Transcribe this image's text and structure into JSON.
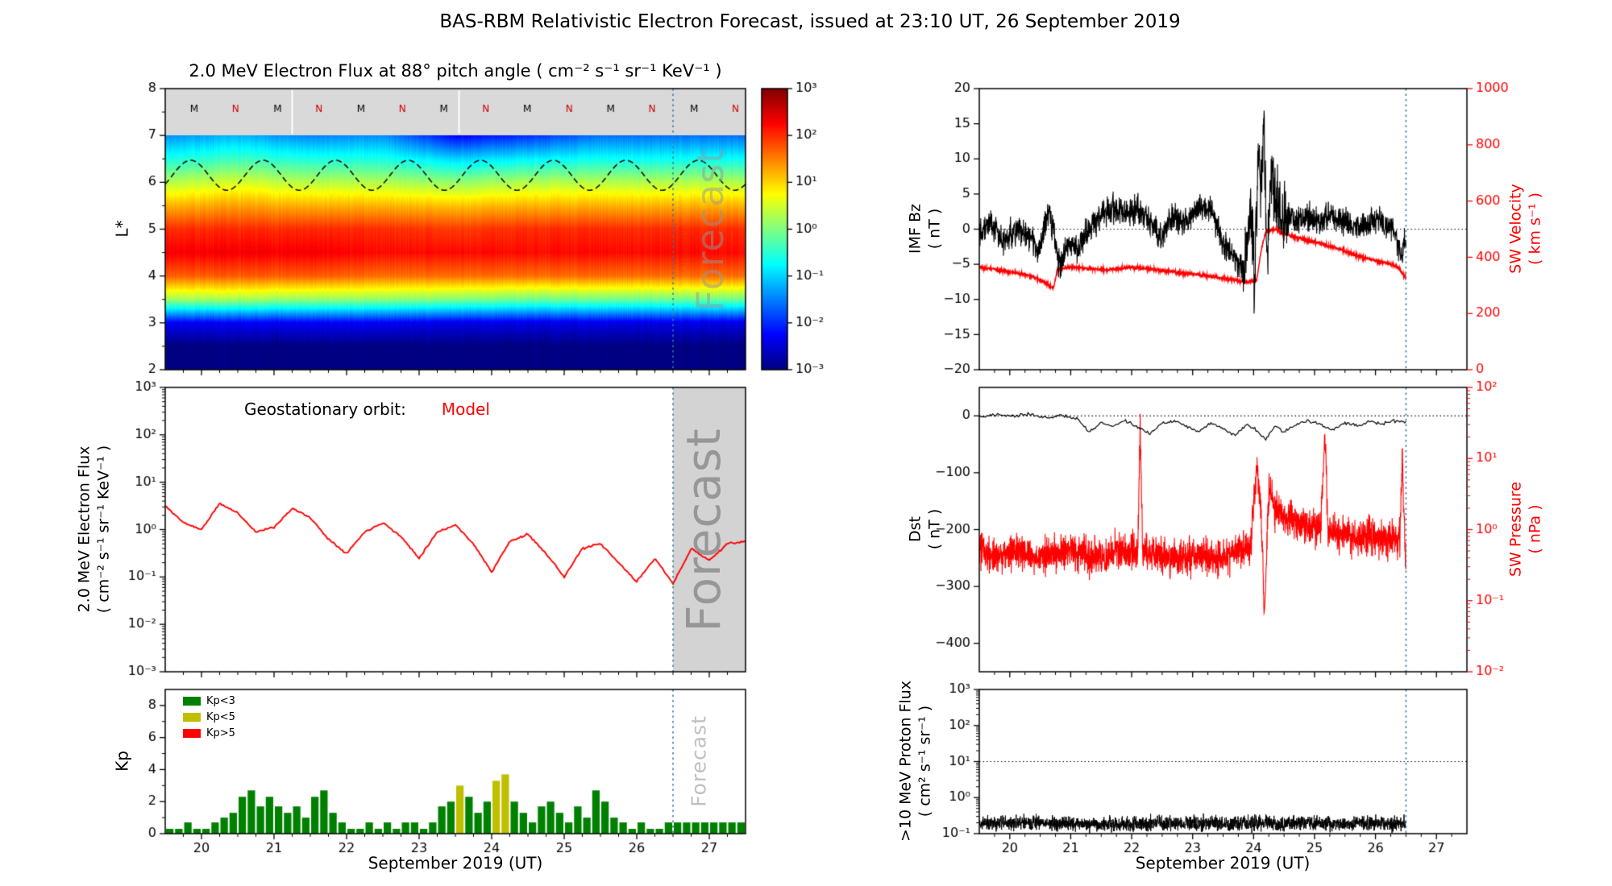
{
  "title": "BAS-RBM Relativistic Electron Forecast, issued at 23:10 UT, 26 September 2019",
  "time_axis": {
    "label": "September 2019 (UT)",
    "min": 19.5,
    "max": 27.5,
    "tick_values": [
      20,
      21,
      22,
      23,
      24,
      25,
      26,
      27
    ],
    "tick_labels": [
      "20",
      "21",
      "22",
      "23",
      "24",
      "25",
      "26",
      "27"
    ]
  },
  "forecast": {
    "start": 26.5,
    "line_color": "#357ba3",
    "region_color": "#d3d3d3",
    "watermark": "Forecast"
  },
  "chart_data": [
    {
      "id": "electron_flux_heatmap",
      "type": "heatmap",
      "title": "2.0 MeV Electron Flux at 88° pitch angle ( cm⁻² s⁻¹ sr⁻¹ KeV⁻¹ )",
      "ylabel": "L*",
      "ylim": [
        2,
        8
      ],
      "ytick_values": [
        2,
        3,
        4,
        5,
        6,
        7,
        8
      ],
      "ytick_labels": [
        "2",
        "3",
        "4",
        "5",
        "6",
        "7",
        "8"
      ],
      "color_scale": {
        "type": "jet",
        "scale": "log",
        "log10_min": -3,
        "log10_max": 3,
        "colorbar_tick_exps": [
          3,
          2,
          1,
          0,
          -1,
          -2,
          -3
        ],
        "colorbar_tick_labels": [
          "10³",
          "10²",
          "10¹",
          "10⁰",
          "10⁻¹",
          "10⁻²",
          "10⁻³"
        ]
      },
      "grid_times": [
        19.5,
        20.5,
        21.5,
        22.5,
        23.5,
        24.5,
        25.5,
        26.5,
        27.5
      ],
      "grid_lstar": [
        2,
        2.5,
        3,
        3.5,
        4,
        4.5,
        5,
        5.5,
        6,
        6.5,
        7
      ],
      "log10_flux_rows": [
        [
          -3,
          -3,
          -3,
          -3,
          -3,
          -3,
          -3,
          -3,
          -3
        ],
        [
          -3,
          -3,
          -3,
          -3,
          -3,
          -3,
          -3,
          -3,
          -3
        ],
        [
          -2.3,
          -2.3,
          -2.3,
          -2.3,
          -2.4,
          -2.4,
          -2.4,
          -2.4,
          -2.4
        ],
        [
          0.2,
          0.2,
          0.1,
          0.1,
          0.0,
          -0.1,
          -0.1,
          -0.1,
          -0.1
        ],
        [
          1.7,
          1.7,
          1.7,
          1.6,
          1.6,
          1.6,
          1.6,
          1.6,
          1.6
        ],
        [
          2.3,
          2.3,
          2.3,
          2.2,
          2.2,
          2.2,
          2.2,
          2.2,
          2.2
        ],
        [
          2.0,
          2.0,
          2.0,
          2.0,
          1.9,
          2.0,
          2.0,
          2.0,
          2.0
        ],
        [
          1.2,
          1.3,
          1.2,
          1.2,
          1.1,
          1.2,
          1.2,
          1.2,
          1.2
        ],
        [
          0.3,
          0.5,
          0.3,
          0.3,
          0.1,
          0.3,
          0.3,
          0.3,
          0.3
        ],
        [
          -0.6,
          -0.4,
          -0.6,
          -0.6,
          -1.0,
          -0.8,
          -0.7,
          -0.7,
          -0.7
        ],
        [
          -1.4,
          -1.2,
          -1.5,
          -1.4,
          -2.3,
          -2.0,
          -1.6,
          -1.6,
          -1.6
        ]
      ],
      "satellite_band": {
        "lstar_range": [
          7,
          8
        ],
        "fill": "#d9d9d9",
        "label_times": [
          19.9,
          20.47,
          21.05,
          21.62,
          22.2,
          22.77,
          23.34,
          23.92,
          24.49,
          25.07,
          25.64,
          26.21,
          26.79,
          27.36
        ],
        "labels": [
          "M",
          "N",
          "M",
          "N",
          "M",
          "N",
          "M",
          "N",
          "M",
          "N",
          "M",
          "N",
          "M",
          "N"
        ],
        "label_colors": {
          "M": "#000000",
          "N": "#cc0000"
        },
        "white_tick_times": [
          21.25,
          23.55
        ]
      },
      "dashed_line": {
        "name": "geostationary-lstar",
        "mean": 6.15,
        "amplitude": 0.32,
        "period_days": 1.0,
        "phase_peak_t": 19.85
      }
    },
    {
      "id": "geo_electron_flux",
      "type": "line",
      "legend": {
        "prefix": "Geostationary orbit:",
        "series_label": "Model",
        "color": "#ff0000"
      },
      "ylabel_lines": [
        "2.0 MeV Electron Flux",
        "( cm⁻² s⁻¹ sr⁻¹ KeV⁻¹ )"
      ],
      "yscale": "log",
      "ylim_exp": [
        -3,
        3
      ],
      "ytick_exps": [
        3,
        2,
        1,
        0,
        -1,
        -2,
        -3
      ],
      "ytick_labels": [
        "10³",
        "10²",
        "10¹",
        "10⁰",
        "10⁻¹",
        "10⁻²",
        "10⁻³"
      ],
      "series_log10": {
        "t": [
          19.5,
          19.75,
          20,
          20.25,
          20.5,
          20.75,
          21,
          21.25,
          21.5,
          21.75,
          22,
          22.25,
          22.5,
          22.75,
          23,
          23.25,
          23.5,
          23.75,
          24,
          24.25,
          24.5,
          24.75,
          25,
          25.25,
          25.5,
          25.75,
          26,
          26.25,
          26.5,
          26.75,
          27,
          27.25,
          27.5
        ],
        "v": [
          0.5,
          0.15,
          0,
          0.55,
          0.35,
          -0.05,
          0.05,
          0.45,
          0.25,
          -0.2,
          -0.5,
          -0.05,
          0.15,
          -0.15,
          -0.6,
          -0.05,
          0.1,
          -0.3,
          -0.9,
          -0.25,
          -0.1,
          -0.5,
          -1.0,
          -0.4,
          -0.3,
          -0.7,
          -1.1,
          -0.6,
          -1.15,
          -0.4,
          -0.65,
          -0.3,
          -0.25
        ]
      },
      "noise": 0.02
    },
    {
      "id": "kp_index",
      "type": "bar",
      "ylabel": "Kp",
      "xlabel": "September 2019 (UT)",
      "ylim": [
        0,
        9
      ],
      "ytick_values": [
        0,
        2,
        4,
        6,
        8
      ],
      "ytick_labels": [
        "0",
        "2",
        "4",
        "6",
        "8"
      ],
      "start_time": 19.5,
      "bar_width_days": 0.125,
      "thresholds": {
        "quiet_max": 3,
        "moderate_max": 5
      },
      "legend": [
        {
          "label": "Kp<3",
          "color": "#008000"
        },
        {
          "label": "Kp<5",
          "color": "#bfbf00"
        },
        {
          "label": "Kp>5",
          "color": "#ff0000"
        }
      ],
      "values": [
        0.3,
        0.3,
        0.7,
        0.3,
        0.3,
        0.7,
        1.0,
        1.3,
        2.3,
        2.7,
        1.7,
        2.3,
        1.7,
        1.3,
        1.7,
        1.0,
        2.3,
        2.7,
        1.3,
        0.7,
        0.3,
        0.3,
        0.7,
        0.3,
        0.7,
        0.3,
        0.7,
        0.7,
        0.3,
        0.7,
        1.7,
        2.0,
        3.0,
        2.3,
        1.3,
        2.0,
        3.3,
        3.7,
        2.0,
        1.3,
        0.7,
        1.7,
        2.0,
        1.3,
        0.7,
        1.7,
        1.0,
        2.7,
        2.0,
        1.0,
        0.7,
        0.3,
        0.7,
        0.3,
        0.3,
        0.7,
        0.7,
        0.7,
        0.7,
        0.7,
        0.7,
        0.7,
        0.7,
        0.7
      ]
    },
    {
      "id": "imf_bz_sw_velocity",
      "type": "line-dual-axis",
      "left": {
        "label_lines": [
          "IMF Bz",
          "( nT )"
        ],
        "color": "#000000",
        "ylim": [
          -20,
          20
        ],
        "tick_values": [
          20,
          15,
          10,
          5,
          0,
          -5,
          -10,
          -15,
          -20
        ],
        "tick_labels": [
          "20",
          "15",
          "10",
          "5",
          "0",
          "−5",
          "−10",
          "−15",
          "−20"
        ],
        "zero_line": 0
      },
      "right": {
        "label_lines": [
          "SW Velocity",
          "( km s⁻¹ )"
        ],
        "color": "#ff0000",
        "ylim": [
          0,
          1000
        ],
        "tick_values": [
          1000,
          800,
          600,
          400,
          200,
          0
        ],
        "tick_labels": [
          "1000",
          "800",
          "600",
          "400",
          "200",
          "0"
        ]
      },
      "bz_series": {
        "t": [
          19.5,
          19.7,
          19.9,
          20.1,
          20.3,
          20.5,
          20.65,
          20.8,
          20.95,
          21.1,
          21.3,
          21.5,
          21.7,
          21.9,
          22.1,
          22.3,
          22.5,
          22.7,
          22.9,
          23.1,
          23.3,
          23.5,
          23.7,
          23.85,
          23.95,
          24.02,
          24.08,
          24.12,
          24.17,
          24.22,
          24.28,
          24.35,
          24.5,
          24.7,
          24.9,
          25.1,
          25.3,
          25.5,
          25.7,
          25.9,
          26.1,
          26.3,
          26.42,
          26.5
        ],
        "v": [
          0,
          1,
          -2,
          0,
          -1,
          -3,
          3,
          -5,
          -2,
          -3,
          0,
          2,
          3,
          2,
          3,
          1,
          -1,
          2,
          1,
          3,
          3,
          -2,
          -4,
          -6,
          4,
          -7,
          12,
          6,
          15,
          -6,
          8,
          4,
          2,
          1,
          2,
          1,
          2,
          1,
          0,
          1,
          1,
          0,
          -4,
          -1
        ]
      },
      "bz_noise_envelope": {
        "t": [
          19.5,
          23.8,
          23.9,
          24.45,
          24.6,
          26.5
        ],
        "v": [
          2.2,
          2.2,
          5.5,
          5.5,
          2.2,
          2.2
        ]
      },
      "velocity_series": {
        "t": [
          19.5,
          19.8,
          20.1,
          20.4,
          20.6,
          20.72,
          20.78,
          21.0,
          21.3,
          21.6,
          22.0,
          22.3,
          22.6,
          23.0,
          23.3,
          23.6,
          23.9,
          24.05,
          24.12,
          24.2,
          24.35,
          24.5,
          24.8,
          25.1,
          25.4,
          25.7,
          26.0,
          26.2,
          26.35,
          26.45,
          26.5
        ],
        "v": [
          365,
          355,
          345,
          330,
          305,
          290,
          355,
          365,
          360,
          355,
          365,
          358,
          350,
          340,
          332,
          322,
          312,
          318,
          420,
          490,
          500,
          485,
          465,
          450,
          430,
          405,
          388,
          378,
          368,
          340,
          325
        ]
      },
      "velocity_noise": 6,
      "data_end": 26.5
    },
    {
      "id": "dst_sw_pressure",
      "type": "line-dual-axis",
      "left": {
        "label_lines": [
          "Dst",
          "( nT )"
        ],
        "color": "#000000",
        "ylim": [
          -450,
          50
        ],
        "tick_values": [
          0,
          -100,
          -200,
          -300,
          -400
        ],
        "tick_labels": [
          "0",
          "−100",
          "−200",
          "−300",
          "−400"
        ],
        "zero_line": 0
      },
      "right": {
        "label_lines": [
          "SW Pressure",
          "( nPa )"
        ],
        "color": "#ff0000",
        "yscale": "log",
        "ylim_exp": [
          -2,
          2
        ],
        "tick_exps": [
          2,
          1,
          0,
          -1,
          -2
        ],
        "tick_labels": [
          "10²",
          "10¹",
          "10⁰",
          "10⁻¹",
          "10⁻²"
        ]
      },
      "dst_series": {
        "t": [
          19.5,
          19.8,
          20.0,
          20.3,
          20.6,
          20.9,
          21.1,
          21.3,
          21.5,
          21.7,
          21.9,
          22.1,
          22.3,
          22.5,
          22.7,
          22.9,
          23.1,
          23.3,
          23.5,
          23.7,
          23.9,
          24.05,
          24.2,
          24.35,
          24.5,
          24.7,
          24.9,
          25.1,
          25.3,
          25.5,
          25.7,
          25.9,
          26.1,
          26.3,
          26.5
        ],
        "v": [
          -2,
          2,
          0,
          3,
          -3,
          0,
          -5,
          -28,
          -12,
          -18,
          -8,
          -20,
          -32,
          -12,
          -8,
          -18,
          -28,
          -12,
          -22,
          -35,
          -15,
          -25,
          -42,
          -18,
          -28,
          -15,
          -8,
          -15,
          -25,
          -12,
          -18,
          -10,
          -15,
          -8,
          -12
        ]
      },
      "dst_noise": 3,
      "pressure_series_log10": {
        "t": [
          19.5,
          19.8,
          20.1,
          20.4,
          20.7,
          21.0,
          21.3,
          21.6,
          21.9,
          22.1,
          22.14,
          22.18,
          22.5,
          22.8,
          23.1,
          23.4,
          23.7,
          23.95,
          24.05,
          24.12,
          24.18,
          24.25,
          24.35,
          24.5,
          24.7,
          24.9,
          25.1,
          25.17,
          25.22,
          25.4,
          25.7,
          26.0,
          26.2,
          26.4,
          26.44,
          26.5
        ],
        "v": [
          -0.3,
          -0.35,
          -0.3,
          -0.4,
          -0.35,
          -0.3,
          -0.4,
          -0.35,
          -0.3,
          -0.3,
          1.5,
          -0.3,
          -0.35,
          -0.4,
          -0.35,
          -0.4,
          -0.3,
          -0.25,
          0.9,
          0.3,
          -1.2,
          0.6,
          0.3,
          0.2,
          0.1,
          0.05,
          0.0,
          1.3,
          0.0,
          -0.05,
          -0.1,
          -0.1,
          -0.15,
          -0.1,
          1.0,
          -0.6
        ]
      },
      "pressure_noise": 0.28,
      "data_end": 26.5
    },
    {
      "id": "proton_flux",
      "type": "line",
      "ylabel_lines": [
        ">10 MeV Proton Flux",
        "( cm² s⁻¹ sr⁻¹ )"
      ],
      "xlabel": "September 2019 (UT)",
      "yscale": "log",
      "ylim_exp": [
        -1,
        3
      ],
      "ytick_exps": [
        3,
        2,
        1,
        0,
        -1
      ],
      "ytick_labels": [
        "10³",
        "10²",
        "10¹",
        "10⁰",
        "10⁻¹"
      ],
      "threshold_line_exp": 1,
      "series_log10": {
        "t": [
          19.5,
          20.5,
          21.5,
          22.5,
          23.5,
          24.5,
          25.5,
          26.5
        ],
        "v": [
          -0.72,
          -0.7,
          -0.74,
          -0.71,
          -0.73,
          -0.7,
          -0.72,
          -0.7
        ]
      },
      "noise": 0.22,
      "color": "#000000",
      "data_end": 26.5
    }
  ]
}
